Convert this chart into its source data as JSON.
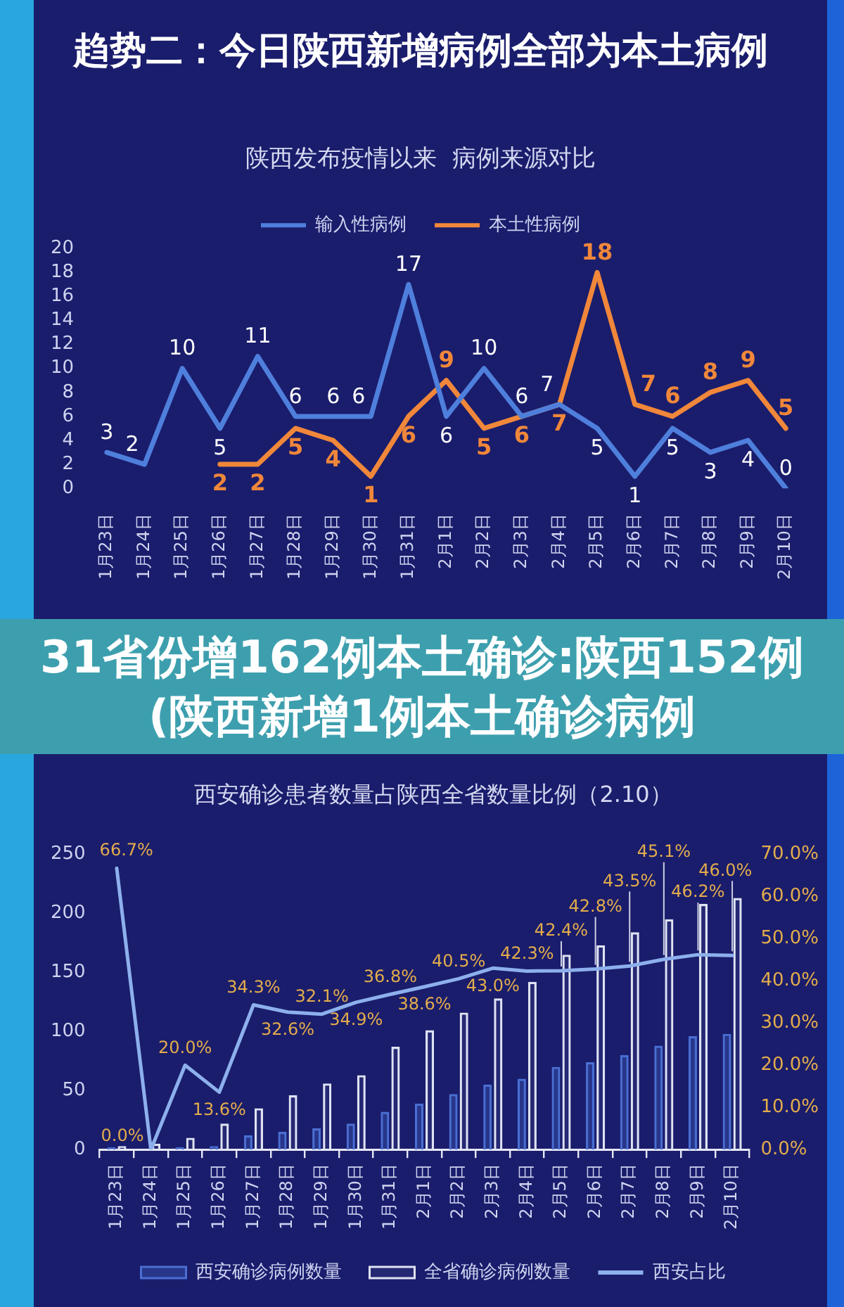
{
  "chart_data": [
    {
      "type": "line",
      "title": "趋势二：今日陕西新增病例全部为本土病例",
      "subtitle": "陕西发布疫情以来  病例来源对比",
      "categories": [
        "1月23日",
        "1月24日",
        "1月25日",
        "1月26日",
        "1月27日",
        "1月28日",
        "1月29日",
        "1月30日",
        "1月31日",
        "2月1日",
        "2月2日",
        "2月3日",
        "2月4日",
        "2月5日",
        "2月6日",
        "2月7日",
        "2月8日",
        "2月9日",
        "2月10日"
      ],
      "series": [
        {
          "name": "输入性病例",
          "color": "#4f7fdc",
          "values": [
            3,
            2,
            10,
            5,
            11,
            6,
            6,
            6,
            17,
            6,
            10,
            6,
            7,
            5,
            1,
            5,
            3,
            4,
            0
          ]
        },
        {
          "name": "本土性病例",
          "color": "#f0873a",
          "values": [
            null,
            null,
            null,
            2,
            2,
            5,
            4,
            1,
            6,
            9,
            5,
            6,
            7,
            18,
            7,
            6,
            8,
            9,
            5
          ]
        }
      ],
      "ylim": [
        0,
        20
      ],
      "yticks": [
        0,
        2,
        4,
        6,
        8,
        10,
        12,
        14,
        16,
        18,
        20
      ],
      "grid": false,
      "legend": "top",
      "marker": "none",
      "data_labels": true
    },
    {
      "type": "bar",
      "title": "西安确诊患者数量占陕西全省数量比例（2.10）",
      "annotations": [
        "31省份增162例本土确诊:陕西152例(陕西新增1例本土确诊病例"
      ],
      "categories": [
        "1月23日",
        "1月24日",
        "1月25日",
        "1月26日",
        "1月27日",
        "1月28日",
        "1月29日",
        "1月30日",
        "1月31日",
        "2月1日",
        "2月2日",
        "2月3日",
        "2月4日",
        "2月5日",
        "2月6日",
        "2月7日",
        "2月8日",
        "2月9日",
        "2月10日"
      ],
      "series": [
        {
          "name": "西安确诊病例数量",
          "color": "#4a6fd2",
          "values": [
            2,
            null,
            2,
            3,
            12,
            15,
            18,
            22,
            32,
            39,
            47,
            55,
            60,
            70,
            74,
            80,
            88,
            96,
            98
          ]
        },
        {
          "name": "全省确诊病例数量",
          "color": "#dfe3f3",
          "values": [
            3,
            5,
            10,
            22,
            35,
            46,
            56,
            63,
            87,
            101,
            116,
            128,
            142,
            165,
            173,
            184,
            195,
            208,
            213
          ]
        },
        {
          "name": "西安占比",
          "type": "line",
          "axis": "y2",
          "color": "#8db0ec",
          "values": [
            66.7,
            0,
            20,
            13.6,
            34.3,
            32.6,
            32.1,
            34.9,
            36.8,
            38.6,
            40.5,
            43,
            42.3,
            42.4,
            42.8,
            43.5,
            45.1,
            46.2,
            46
          ],
          "value_labels": [
            "66.7%",
            "0.0%",
            "20.0%",
            "13.6%",
            "34.3%",
            "32.6%",
            "32.1%",
            "34.9%",
            "36.8%",
            "38.6%",
            "40.5%",
            "43.0%",
            "42.3%",
            "42.4%",
            "42.8%",
            "43.5%",
            "45.1%",
            "46.2%",
            "46.0%"
          ]
        }
      ],
      "ylim": [
        0,
        250
      ],
      "yticks": [
        0,
        50,
        100,
        150,
        200,
        250
      ],
      "y2lim": [
        0,
        70
      ],
      "y2ticks": [
        {
          "value": 0,
          "label": "0.0%"
        },
        {
          "value": 10,
          "label": "10.0%"
        },
        {
          "value": 20,
          "label": "20.0%"
        },
        {
          "value": 30,
          "label": "30.0%"
        },
        {
          "value": 40,
          "label": "40.0%"
        },
        {
          "value": 50,
          "label": "50.0%"
        },
        {
          "value": 60,
          "label": "60.0%"
        },
        {
          "value": 70,
          "label": "70.0%"
        }
      ],
      "grid": false,
      "legend": "bottom",
      "marker": "none"
    }
  ]
}
